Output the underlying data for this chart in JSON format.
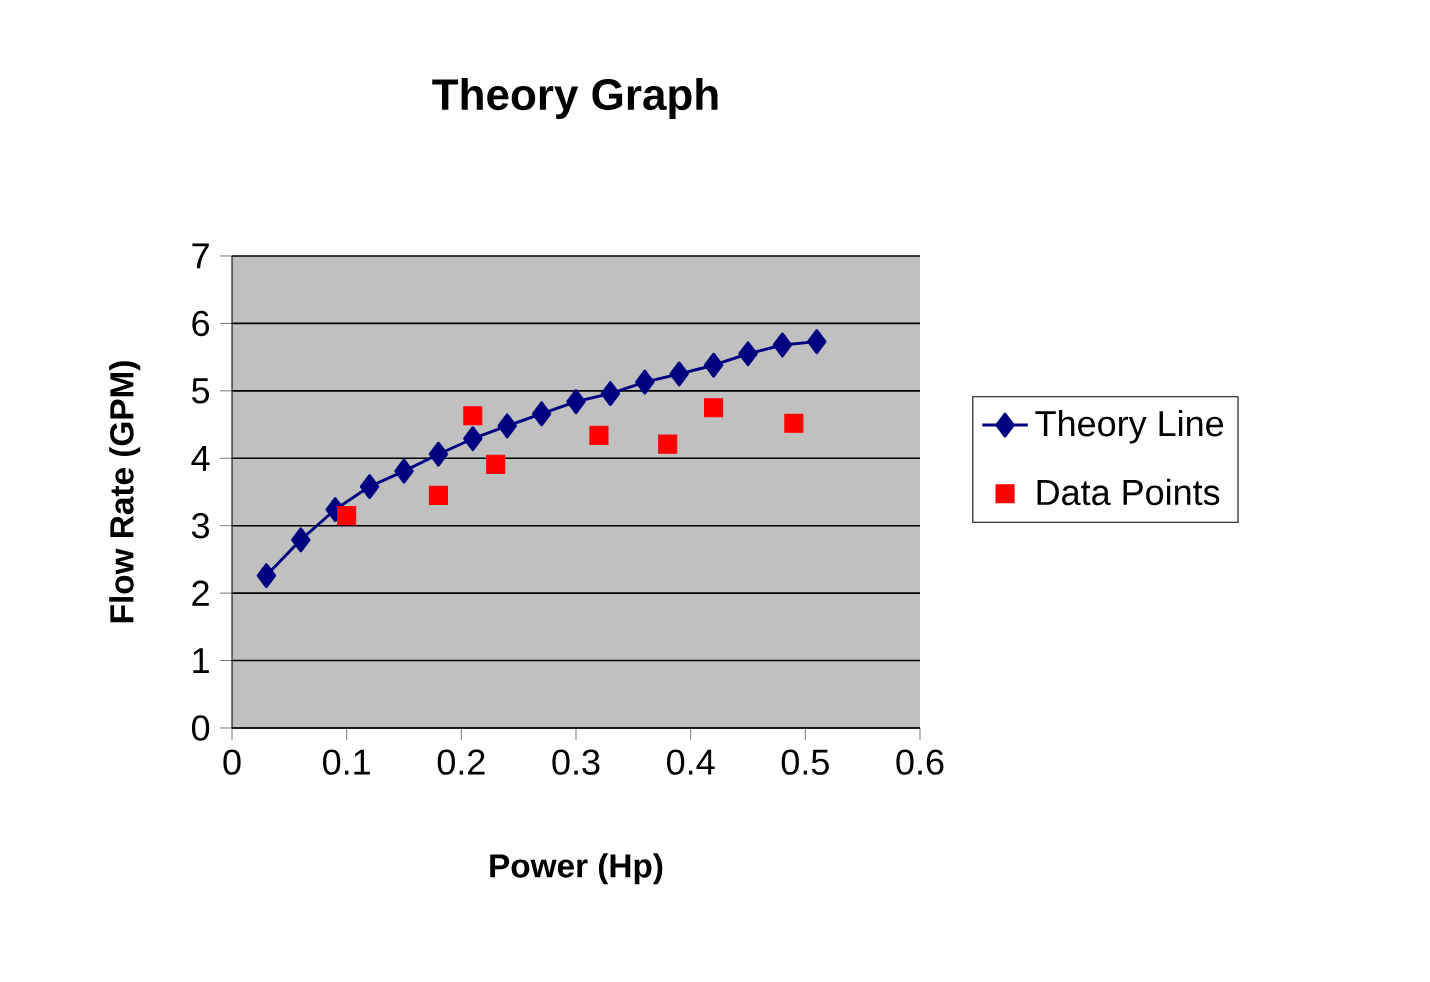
{
  "chart_data": {
    "type": "line",
    "title": "Theory Graph",
    "xlabel": "Power (Hp)",
    "ylabel": "Flow Rate (GPM)",
    "xlim": [
      0,
      0.6
    ],
    "xticks": [
      0,
      0.1,
      0.2,
      0.3,
      0.4,
      0.5,
      0.6
    ],
    "ylim": [
      0,
      7
    ],
    "yticks": [
      0,
      1,
      2,
      3,
      4,
      5,
      6,
      7
    ],
    "grid": "y",
    "legend": "right",
    "series": [
      {
        "name": "Theory Line",
        "color": "#000080",
        "marker": "diamond",
        "line_style": "solid",
        "x": [
          0.03,
          0.06,
          0.09,
          0.12,
          0.15,
          0.18,
          0.21,
          0.24,
          0.27,
          0.3,
          0.33,
          0.36,
          0.39,
          0.42,
          0.45,
          0.48,
          0.51
        ],
        "values": [
          2.26,
          2.79,
          3.24,
          3.58,
          3.81,
          4.06,
          4.29,
          4.48,
          4.66,
          4.84,
          4.96,
          5.13,
          5.25,
          5.38,
          5.55,
          5.68,
          5.73
        ]
      },
      {
        "name": "Data Points",
        "type": "scatter",
        "color": "#ff0000",
        "marker": "square",
        "x": [
          0.1,
          0.18,
          0.21,
          0.23,
          0.32,
          0.38,
          0.42,
          0.49
        ],
        "values": [
          3.15,
          3.45,
          4.63,
          3.91,
          4.34,
          4.21,
          4.75,
          4.52
        ]
      }
    ]
  }
}
